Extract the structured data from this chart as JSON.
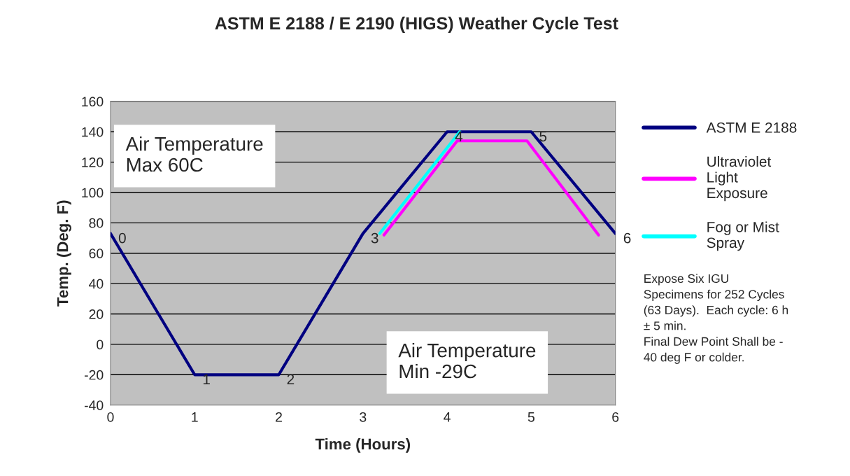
{
  "chart_data": {
    "type": "line",
    "title": "ASTM E 2188 / E 2190 (HIGS) Weather Cycle Test",
    "xlabel": "Time (Hours)",
    "ylabel": "Temp. (Deg. F)",
    "xlim": [
      0,
      6
    ],
    "xticks": [
      0,
      1,
      2,
      3,
      4,
      5,
      6
    ],
    "ylim": [
      -40,
      160
    ],
    "yticks": [
      -40,
      -20,
      0,
      20,
      40,
      60,
      80,
      100,
      120,
      140,
      160
    ],
    "grid": "y",
    "legend": "right",
    "marker": "none",
    "line_style": "solid",
    "series": [
      {
        "name": "ASTM E 2188",
        "color": "#000080",
        "x": [
          0,
          1,
          2,
          3,
          4,
          5,
          6
        ],
        "values": [
          73,
          -20,
          -20,
          73,
          140,
          140,
          73
        ]
      },
      {
        "name": "Ultraviolet Light Exposure",
        "color": "#ff00ff",
        "x": [
          3.25,
          4.12,
          4.95,
          5.8
        ],
        "values": [
          72,
          134,
          134,
          72
        ]
      },
      {
        "name": "Fog or Mist Spray",
        "color": "#00ffff",
        "x": [
          3.2,
          4.15
        ],
        "values": [
          73,
          140
        ]
      }
    ],
    "annotations": [
      "Air Temperature\nMax 60C",
      "Air Temperature\nMin -29C",
      "Expose Six IGU\nSpecimens for 252 Cycles\n(63 Days).  Each cycle: 6 h\n± 5 min.\nFinal Dew Point Shall be -\n40 deg F or colder.",
      {
        "text": "0",
        "x": 0,
        "y": 73
      },
      {
        "text": "1",
        "x": 1,
        "y": -20
      },
      {
        "text": "2",
        "x": 2,
        "y": -20
      },
      {
        "text": "3",
        "x": 3,
        "y": 73
      },
      {
        "text": "4",
        "x": 4,
        "y": 140
      },
      {
        "text": "5",
        "x": 5,
        "y": 140
      },
      {
        "text": "6",
        "x": 6,
        "y": 73
      }
    ]
  }
}
